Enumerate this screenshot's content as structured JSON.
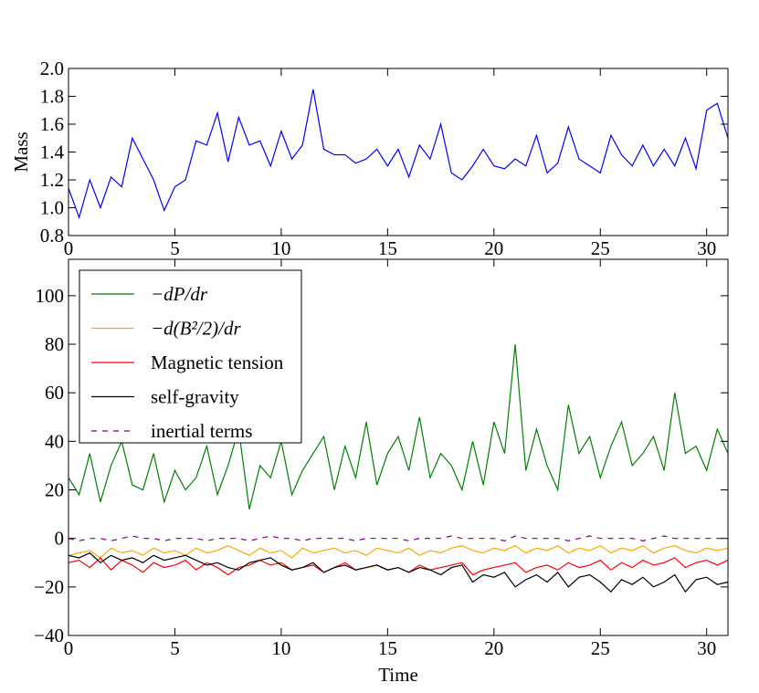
{
  "chart_data": [
    {
      "type": "line",
      "ylabel": "Mass",
      "x": [
        0,
        0.5,
        1,
        1.5,
        2,
        2.5,
        3,
        3.5,
        4,
        4.5,
        5,
        5.5,
        6,
        6.5,
        7,
        7.5,
        8,
        8.5,
        9,
        9.5,
        10,
        10.5,
        11,
        11.5,
        12,
        12.5,
        13,
        13.5,
        14,
        14.5,
        15,
        15.5,
        16,
        16.5,
        17,
        17.5,
        18,
        18.5,
        19,
        19.5,
        20,
        20.5,
        21,
        21.5,
        22,
        22.5,
        23,
        23.5,
        24,
        24.5,
        25,
        25.5,
        26,
        26.5,
        27,
        27.5,
        28,
        28.5,
        29,
        29.5,
        30,
        30.5,
        31
      ],
      "values": [
        1.14,
        0.93,
        1.2,
        1.0,
        1.22,
        1.15,
        1.5,
        1.35,
        1.2,
        0.98,
        1.15,
        1.2,
        1.48,
        1.45,
        1.68,
        1.33,
        1.65,
        1.45,
        1.48,
        1.3,
        1.55,
        1.35,
        1.45,
        1.85,
        1.42,
        1.38,
        1.38,
        1.32,
        1.35,
        1.42,
        1.3,
        1.42,
        1.22,
        1.45,
        1.35,
        1.6,
        1.25,
        1.2,
        1.3,
        1.42,
        1.3,
        1.28,
        1.35,
        1.3,
        1.52,
        1.25,
        1.32,
        1.58,
        1.35,
        1.3,
        1.25,
        1.52,
        1.38,
        1.3,
        1.45,
        1.3,
        1.42,
        1.3,
        1.5,
        1.28,
        1.7,
        1.75,
        1.5
      ],
      "color": "#0000ff",
      "xlim": [
        0,
        31
      ],
      "xticks": [
        0,
        5,
        10,
        15,
        20,
        25,
        30
      ],
      "ylim": [
        0.8,
        2.0
      ],
      "yticks": [
        0.8,
        {
          "value": 1,
          "label": "1.0"
        },
        1.2,
        1.4,
        1.6,
        1.8,
        {
          "value": 2,
          "label": "2.0"
        }
      ]
    },
    {
      "type": "line",
      "xlabel": "Time",
      "x": [
        0,
        0.5,
        1,
        1.5,
        2,
        2.5,
        3,
        3.5,
        4,
        4.5,
        5,
        5.5,
        6,
        6.5,
        7,
        7.5,
        8,
        8.5,
        9,
        9.5,
        10,
        10.5,
        11,
        11.5,
        12,
        12.5,
        13,
        13.5,
        14,
        14.5,
        15,
        15.5,
        16,
        16.5,
        17,
        17.5,
        18,
        18.5,
        19,
        19.5,
        20,
        20.5,
        21,
        21.5,
        22,
        22.5,
        23,
        23.5,
        24,
        24.5,
        25,
        25.5,
        26,
        26.5,
        27,
        27.5,
        28,
        28.5,
        29,
        29.5,
        30,
        30.5,
        31
      ],
      "series": [
        {
          "name": "−dP/dr",
          "color": "#008000",
          "style": "solid",
          "values": [
            25,
            18,
            35,
            15,
            30,
            40,
            22,
            20,
            35,
            15,
            28,
            20,
            25,
            38,
            18,
            30,
            45,
            12,
            30,
            25,
            40,
            18,
            28,
            35,
            42,
            20,
            38,
            25,
            48,
            22,
            35,
            42,
            28,
            50,
            25,
            35,
            30,
            20,
            40,
            22,
            48,
            35,
            80,
            28,
            45,
            30,
            20,
            55,
            35,
            42,
            25,
            38,
            48,
            30,
            35,
            42,
            28,
            60,
            35,
            38,
            28,
            45,
            35
          ]
        },
        {
          "name": "−d(B²/2)/dr",
          "color": "#ffa500",
          "style": "solid",
          "values": [
            -7,
            -6,
            -5,
            -8,
            -4,
            -6,
            -5,
            -7,
            -4,
            -6,
            -5,
            -7,
            -4,
            -6,
            -5,
            -3,
            -5,
            -7,
            -4,
            -6,
            -5,
            -8,
            -4,
            -6,
            -5,
            -4,
            -6,
            -5,
            -7,
            -4,
            -5,
            -6,
            -4,
            -7,
            -5,
            -6,
            -4,
            -3,
            -5,
            -6,
            -4,
            -5,
            -3,
            -6,
            -4,
            -5,
            -3,
            -6,
            -4,
            -5,
            -3,
            -6,
            -4,
            -5,
            -3,
            -6,
            -4,
            -3,
            -5,
            -6,
            -4,
            -5,
            -4
          ]
        },
        {
          "name": "Magnetic tension",
          "color": "#ff0000",
          "style": "solid",
          "values": [
            -10,
            -9,
            -12,
            -8,
            -13,
            -9,
            -11,
            -14,
            -10,
            -12,
            -11,
            -9,
            -13,
            -10,
            -12,
            -15,
            -12,
            -11,
            -9,
            -11,
            -10,
            -13,
            -12,
            -11,
            -14,
            -12,
            -10,
            -13,
            -12,
            -11,
            -13,
            -12,
            -14,
            -11,
            -13,
            -12,
            -11,
            -10,
            -15,
            -13,
            -12,
            -11,
            -10,
            -14,
            -12,
            -11,
            -13,
            -10,
            -12,
            -11,
            -9,
            -13,
            -10,
            -12,
            -9,
            -11,
            -10,
            -8,
            -12,
            -10,
            -9,
            -11,
            -9
          ]
        },
        {
          "name": "self-gravity",
          "color": "#000000",
          "style": "solid",
          "values": [
            -7,
            -8,
            -6,
            -10,
            -7,
            -9,
            -8,
            -10,
            -7,
            -9,
            -8,
            -7,
            -9,
            -11,
            -10,
            -12,
            -13,
            -10,
            -9,
            -8,
            -11,
            -13,
            -12,
            -10,
            -14,
            -12,
            -11,
            -13,
            -12,
            -11,
            -13,
            -12,
            -14,
            -12,
            -13,
            -15,
            -12,
            -11,
            -18,
            -15,
            -16,
            -14,
            -20,
            -17,
            -15,
            -18,
            -14,
            -20,
            -16,
            -15,
            -18,
            -22,
            -17,
            -19,
            -16,
            -20,
            -18,
            -15,
            -22,
            -17,
            -16,
            -19,
            -18
          ]
        },
        {
          "name": "inertial terms",
          "color": "#800080",
          "style": "dashed",
          "values": [
            0,
            -1,
            0,
            0,
            -1,
            0,
            1,
            0,
            0,
            -1,
            0,
            0,
            0,
            -1,
            0,
            0,
            0,
            -1,
            0,
            1,
            0,
            0,
            -1,
            0,
            0,
            0,
            0,
            -1,
            0,
            0,
            0,
            0,
            -1,
            0,
            0,
            0,
            1,
            0,
            0,
            0,
            0,
            -1,
            1,
            0,
            0,
            0,
            0,
            -1,
            0,
            1,
            0,
            0,
            0,
            0,
            -1,
            0,
            1,
            0,
            0,
            0,
            0,
            0,
            0
          ]
        }
      ],
      "legend": "upper left",
      "xlim": [
        0,
        31
      ],
      "xticks": [
        0,
        5,
        10,
        15,
        20,
        25,
        30
      ],
      "ylim": [
        -40,
        115
      ],
      "yticks": [
        {
          "value": -40,
          "label": "−40"
        },
        {
          "value": -20,
          "label": "−20"
        },
        0,
        20,
        40,
        60,
        80,
        100
      ]
    }
  ]
}
